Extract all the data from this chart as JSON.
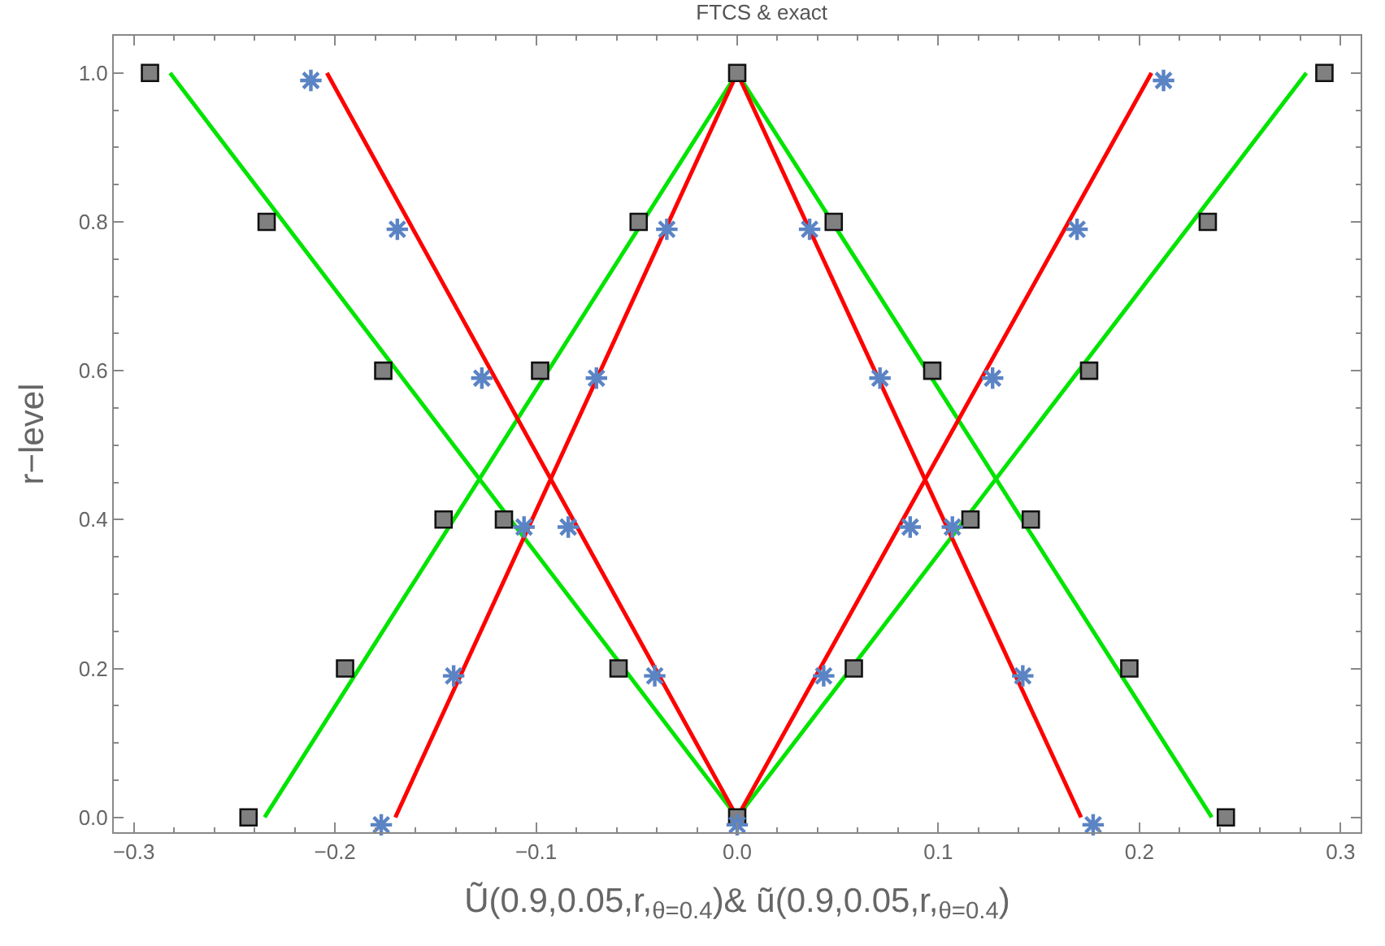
{
  "chart_data": {
    "type": "line",
    "title": "FTCS & exact",
    "xlabel": "Ũ(0.9,0.05,r,$_{θ=0.4}$)& ũ(0.9,0.05,r,$_{θ=0.4}$)",
    "ylabel": "r−level",
    "xlim": [
      -0.31,
      0.31
    ],
    "xticks": [
      {
        "value": -0.3,
        "label": "−0.3"
      },
      {
        "value": -0.2,
        "label": "−0.2"
      },
      {
        "value": -0.1,
        "label": "−0.1"
      },
      {
        "value": 0,
        "label": "0.0"
      },
      0.1,
      0.2,
      0.3
    ],
    "ylim": [
      -0.02,
      1.05
    ],
    "yticks": [
      {
        "value": 0,
        "label": "0.0"
      },
      0.2,
      0.4,
      0.6,
      0.8,
      {
        "value": 1,
        "label": "1.0"
      }
    ],
    "series": [
      {
        "color": "#00e400",
        "marker": "none",
        "line_style": "solid",
        "x": [
          -0.282,
          0,
          0.283
        ],
        "values": [
          1,
          0,
          1
        ]
      },
      {
        "color": "#00e400",
        "marker": "none",
        "line_style": "solid",
        "x": [
          -0.235,
          0,
          0.236
        ],
        "values": [
          0,
          1,
          0
        ]
      },
      {
        "color": "#ff0000",
        "marker": "none",
        "line_style": "solid",
        "x": [
          -0.204,
          0,
          0.206
        ],
        "values": [
          1,
          0,
          1
        ]
      },
      {
        "color": "#ff0000",
        "marker": "none",
        "line_style": "solid",
        "x": [
          -0.17,
          0,
          0.171
        ],
        "values": [
          0,
          1,
          0
        ]
      },
      {
        "type": "scatter",
        "color": "#808080",
        "marker": "square",
        "x": [
          -0.292,
          0,
          0.292,
          -0.234,
          -0.049,
          0.048,
          0.234,
          -0.176,
          -0.098,
          0.097,
          0.175,
          -0.146,
          -0.116,
          0.116,
          0.146,
          -0.195,
          -0.059,
          0.058,
          0.195,
          -0.243,
          0,
          0.243
        ],
        "values": [
          1,
          1,
          1,
          0.8,
          0.8,
          0.8,
          0.8,
          0.6,
          0.6,
          0.6,
          0.6,
          0.4,
          0.4,
          0.4,
          0.4,
          0.2,
          0.2,
          0.2,
          0.2,
          0,
          0,
          0
        ]
      },
      {
        "type": "scatter",
        "color": "#5b84c4",
        "marker": "cross",
        "x": [
          -0.212,
          0.212,
          -0.169,
          -0.035,
          0.036,
          0.169,
          -0.127,
          -0.07,
          0.071,
          0.127,
          -0.106,
          -0.084,
          0.086,
          0.107,
          -0.141,
          -0.041,
          0.043,
          0.142,
          -0.177,
          0,
          0.177
        ],
        "values": [
          0.99,
          0.99,
          0.79,
          0.79,
          0.79,
          0.79,
          0.59,
          0.59,
          0.59,
          0.59,
          0.39,
          0.39,
          0.39,
          0.39,
          0.19,
          0.19,
          0.19,
          0.19,
          -0.01,
          -0.01,
          -0.01
        ]
      }
    ]
  }
}
